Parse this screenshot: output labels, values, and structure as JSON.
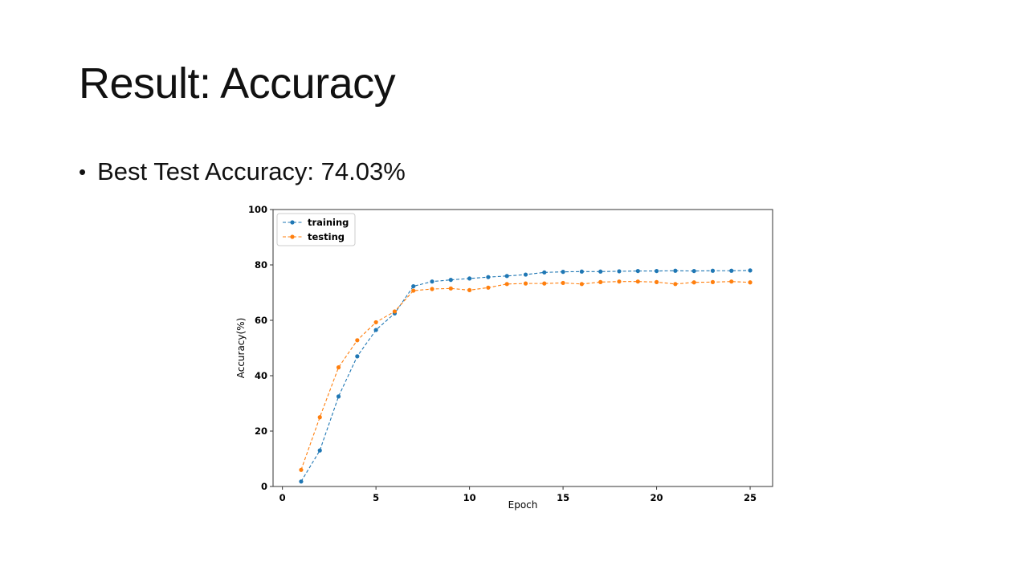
{
  "slide": {
    "title": "Result: Accuracy",
    "bullet": "Best Test Accuracy: 74.03%"
  },
  "chart_data": {
    "type": "line",
    "title": "",
    "xlabel": "Epoch",
    "ylabel": "Accuracy(%)",
    "xlim": [
      -0.5,
      26.2
    ],
    "ylim": [
      0,
      100
    ],
    "xticks": [
      0,
      5,
      10,
      15,
      20,
      25
    ],
    "yticks": [
      0,
      20,
      40,
      60,
      80,
      100
    ],
    "grid": false,
    "legend_position": "top-left",
    "x": [
      1,
      2,
      3,
      4,
      5,
      6,
      7,
      8,
      9,
      10,
      11,
      12,
      13,
      14,
      15,
      16,
      17,
      18,
      19,
      20,
      21,
      22,
      23,
      24,
      25
    ],
    "series": [
      {
        "name": "training",
        "color": "#1f77b4",
        "values": [
          1.8,
          13.0,
          32.5,
          47.0,
          56.5,
          62.5,
          72.3,
          74.0,
          74.6,
          75.1,
          75.6,
          76.0,
          76.5,
          77.3,
          77.5,
          77.6,
          77.6,
          77.7,
          77.8,
          77.8,
          77.9,
          77.8,
          77.9,
          77.9,
          78.0
        ]
      },
      {
        "name": "testing",
        "color": "#ff7f0e",
        "values": [
          6.0,
          25.0,
          43.0,
          52.8,
          59.3,
          63.2,
          70.7,
          71.3,
          71.5,
          70.9,
          71.8,
          73.1,
          73.3,
          73.3,
          73.5,
          73.1,
          73.8,
          74.0,
          74.0,
          73.8,
          73.1,
          73.7,
          73.8,
          74.0,
          73.7
        ]
      }
    ]
  }
}
